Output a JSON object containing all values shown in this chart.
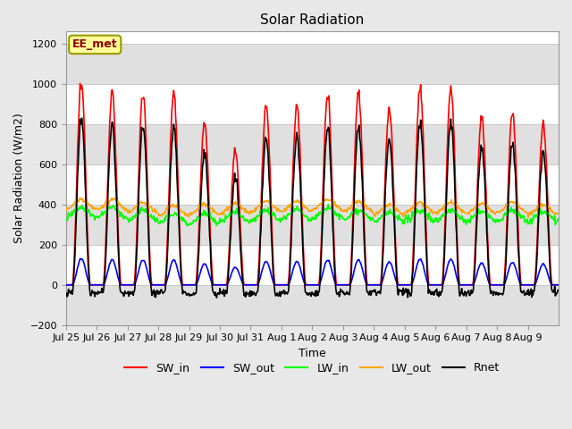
{
  "title": "Solar Radiation",
  "ylabel": "Solar Radiation (W/m2)",
  "xlabel": "Time",
  "ylim": [
    -200,
    1260
  ],
  "yticks": [
    -200,
    0,
    200,
    400,
    600,
    800,
    1000,
    1200
  ],
  "x_tick_labels": [
    "Jul 25",
    "Jul 26",
    "Jul 27",
    "Jul 28",
    "Jul 29",
    "Jul 30",
    "Jul 31",
    "Aug 1",
    "Aug 2",
    "Aug 3",
    "Aug 4",
    "Aug 5",
    "Aug 6",
    "Aug 7",
    "Aug 8",
    "Aug 9"
  ],
  "annotation_text": "EE_met",
  "annotation_color": "#8B0000",
  "annotation_bg": "#FFFF99",
  "annotation_edge": "#999900",
  "fig_bg": "#E8E8E8",
  "plot_bg": "#FFFFFF",
  "band_color": "#E0E0E0",
  "grid_color": "#C8C8C8",
  "lines": [
    {
      "label": "SW_in",
      "color": "#FF0000",
      "lw": 1.2
    },
    {
      "label": "SW_out",
      "color": "#0000FF",
      "lw": 1.2
    },
    {
      "label": "LW_in",
      "color": "#00FF00",
      "lw": 1.2
    },
    {
      "label": "LW_out",
      "color": "#FFA500",
      "lw": 1.2
    },
    {
      "label": "Rnet",
      "color": "#000000",
      "lw": 1.2
    }
  ],
  "n_days": 16,
  "day_peaks_sw_in": [
    1000,
    960,
    960,
    940,
    800,
    670,
    890,
    890,
    940,
    960,
    880,
    980,
    980,
    840,
    860,
    800
  ],
  "lw_in_means": [
    360,
    360,
    345,
    330,
    330,
    340,
    345,
    350,
    360,
    350,
    335,
    345,
    345,
    340,
    345,
    340
  ],
  "lw_out_means": [
    400,
    400,
    385,
    370,
    375,
    380,
    390,
    390,
    400,
    390,
    375,
    385,
    385,
    380,
    385,
    375
  ]
}
